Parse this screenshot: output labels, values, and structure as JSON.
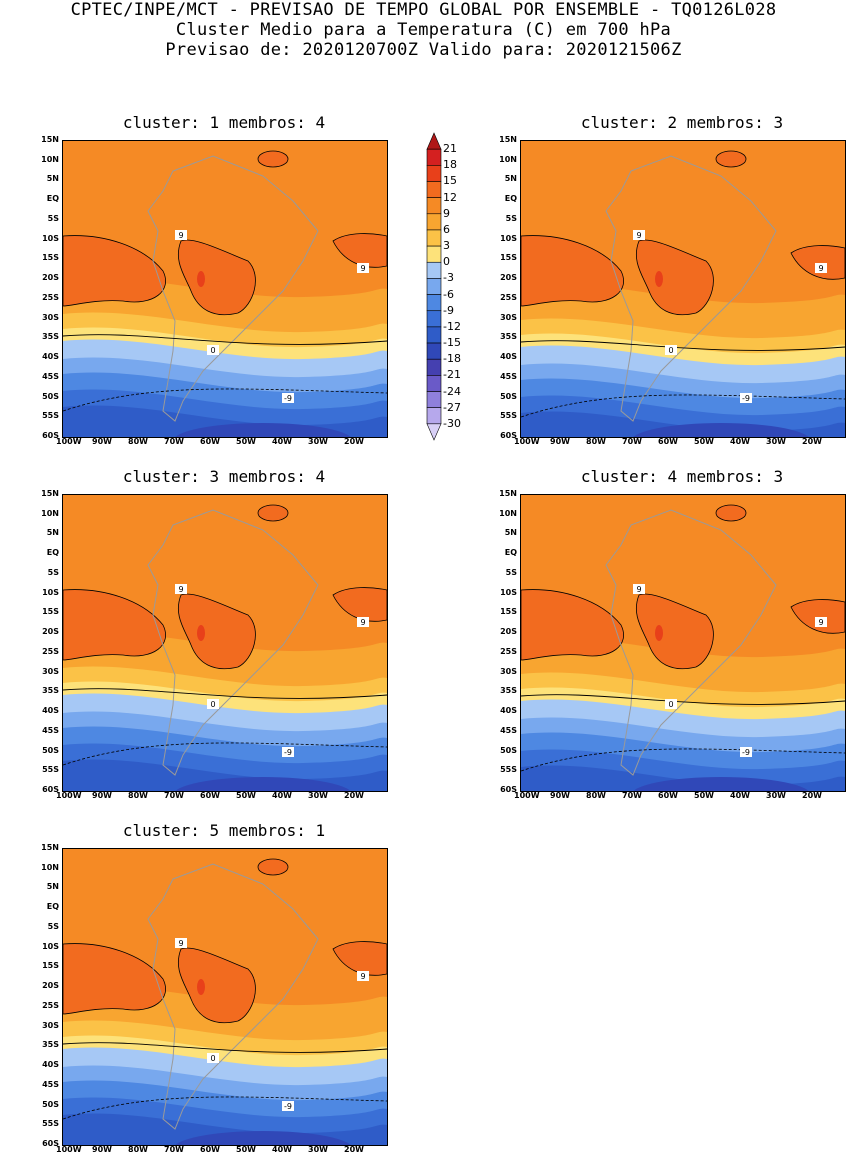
{
  "header": {
    "line1": "CPTEC/INPE/MCT - PREVISAO DE TEMPO GLOBAL POR ENSEMBLE - TQ0126L028",
    "line2": "Cluster Medio para a Temperatura (C) em 700 hPa",
    "line3": "Previsao de: 2020120700Z   Valido para: 2020121506Z"
  },
  "panels": [
    {
      "title": "cluster: 1  membros: 4"
    },
    {
      "title": "cluster: 2  membros: 3"
    },
    {
      "title": "cluster: 3  membros: 4"
    },
    {
      "title": "cluster: 4  membros: 3"
    },
    {
      "title": "cluster: 5  membros: 1"
    }
  ],
  "lat_labels": [
    "15N",
    "10N",
    "5N",
    "EQ",
    "5S",
    "10S",
    "15S",
    "20S",
    "25S",
    "30S",
    "35S",
    "40S",
    "45S",
    "50S",
    "55S",
    "60S"
  ],
  "lon_labels": [
    "100W",
    "90W",
    "80W",
    "70W",
    "60W",
    "50W",
    "40W",
    "30W",
    "20W"
  ],
  "contour_labels": {
    "warm": "9",
    "zero": "0",
    "cold": "-9"
  },
  "colorbar": {
    "labels": [
      "21",
      "18",
      "15",
      "12",
      "9",
      "6",
      "3",
      "0",
      "-3",
      "-6",
      "-9",
      "-12",
      "-15",
      "-18",
      "-21",
      "-24",
      "-27",
      "-30"
    ],
    "colors": [
      "#b01818",
      "#d42020",
      "#e8401a",
      "#f26b1f",
      "#f58a25",
      "#f8a530",
      "#fbc247",
      "#fde27a",
      "#a6c8f5",
      "#78a8ee",
      "#4e88e2",
      "#3a6fd6",
      "#2f5cc8",
      "#3048b8",
      "#4540b0",
      "#6a5ac8",
      "#8f80dc",
      "#b6a8ec",
      "#d8d0f6"
    ]
  }
}
